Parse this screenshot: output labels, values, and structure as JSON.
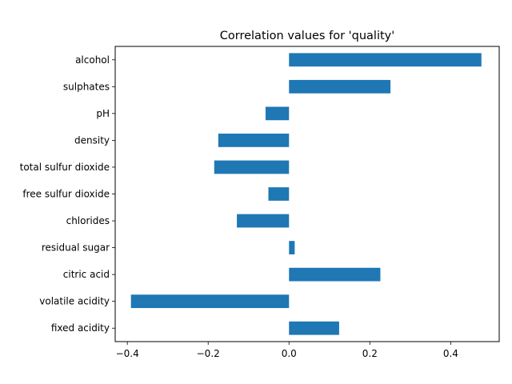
{
  "chart_data": {
    "type": "bar",
    "orientation": "horizontal",
    "title": "Correlation values for 'quality'",
    "xlabel": "",
    "ylabel": "",
    "categories": [
      "fixed acidity",
      "volatile acidity",
      "citric acid",
      "residual sugar",
      "chlorides",
      "free sulfur dioxide",
      "total sulfur dioxide",
      "density",
      "pH",
      "sulphates",
      "alcohol"
    ],
    "values": [
      0.124,
      -0.391,
      0.226,
      0.014,
      -0.129,
      -0.051,
      -0.185,
      -0.175,
      -0.058,
      0.251,
      0.476
    ],
    "xlim": [
      -0.43,
      0.52
    ],
    "xticks": [
      -0.4,
      -0.2,
      0.0,
      0.2,
      0.4
    ],
    "xtick_labels": [
      "−0.4",
      "−0.2",
      "0.0",
      "0.2",
      "0.4"
    ],
    "bar_color": "#1f77b4",
    "grid": false,
    "legend": "none"
  }
}
